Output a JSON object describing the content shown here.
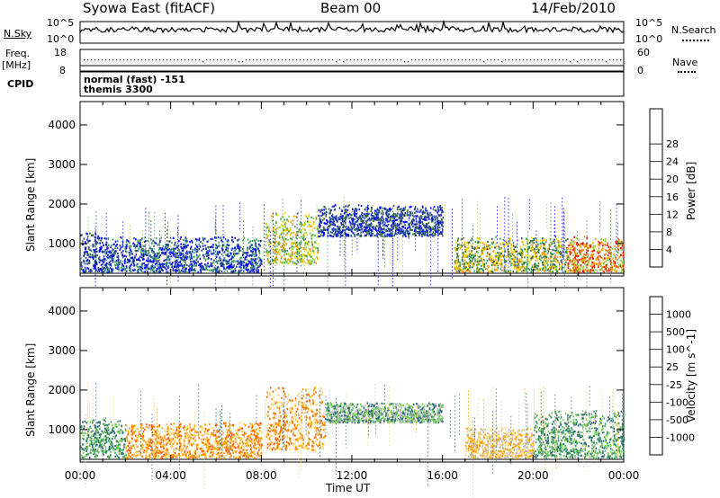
{
  "header": {
    "station": "Syowa East (fitACF)",
    "beam": "Beam 00",
    "date": "14/Feb/2010"
  },
  "panels": {
    "nsky": {
      "label": "N.Sky",
      "left_ticks": [
        "10^5",
        "10^0"
      ],
      "right_label": "N.Search",
      "right_ticks": [
        "10^5",
        "10^0"
      ]
    },
    "freq": {
      "label_line1": "Freq.",
      "label_line2": "[MHz]",
      "left_ticks": [
        "18",
        "8"
      ],
      "right_label": "Nave",
      "right_ticks": [
        "60",
        "0"
      ]
    },
    "cpid": {
      "label": "CPID",
      "line1": "normal (fast) -151",
      "line2": "themis 3300"
    }
  },
  "chart_data": [
    {
      "type": "heatmap",
      "title": "",
      "xlabel": "",
      "ylabel": "Slant Range [km]",
      "x_range_hours_ut": [
        0,
        24
      ],
      "ylim": [
        180,
        4590
      ],
      "yticks": [
        "1000",
        "2000",
        "3000",
        "4000"
      ],
      "colorbar": {
        "label": "Power [dB]",
        "ticks": [
          "4",
          "8",
          "12",
          "16",
          "20",
          "24",
          "28"
        ],
        "range": [
          0,
          30
        ],
        "colors": [
          "#0000ff",
          "#1f3f9f",
          "#2e6a3a",
          "#3f9f5f",
          "#8fd33f",
          "#f5e000",
          "#ffa000",
          "#ff6000",
          "#ff0000"
        ]
      },
      "features": [
        {
          "start_h": 0.0,
          "end_h": 1.0,
          "range_km": [
            300,
            1300
          ],
          "dominant_value": "4-12 dB"
        },
        {
          "start_h": 1.0,
          "end_h": 8.0,
          "range_km": [
            300,
            1200
          ],
          "dominant_value": "4-12 dB"
        },
        {
          "start_h": 8.2,
          "end_h": 10.5,
          "range_km": [
            500,
            1800
          ],
          "dominant_value": "12-24 dB"
        },
        {
          "start_h": 10.5,
          "end_h": 16.0,
          "range_km": [
            1200,
            2000
          ],
          "dominant_value": "4-12 dB"
        },
        {
          "start_h": 16.5,
          "end_h": 21.5,
          "range_km": [
            300,
            1200
          ],
          "dominant_value": "12-24 dB"
        },
        {
          "start_h": 21.5,
          "end_h": 24.0,
          "range_km": [
            300,
            1200
          ],
          "dominant_value": "8-28 dB"
        }
      ]
    },
    {
      "type": "heatmap",
      "title": "",
      "xlabel": "Time UT",
      "ylabel": "Slant Range [km]",
      "x_range_hours_ut": [
        0,
        24
      ],
      "xticks": [
        "00:00",
        "04:00",
        "08:00",
        "12:00",
        "16:00",
        "20:00",
        "00:00"
      ],
      "ylim": [
        180,
        4590
      ],
      "yticks": [
        "1000",
        "2000",
        "3000",
        "4000"
      ],
      "colorbar": {
        "label": "Velocity [m s^-1]",
        "ticks": [
          "1000",
          "500",
          "100",
          "25",
          "-25",
          "-100",
          "-500",
          "-1000"
        ],
        "colors": [
          "#2040c0",
          "#2a6a7a",
          "#3f9f5f",
          "#6fd04f",
          "#bdbdbd",
          "#ffd05f",
          "#ffa000",
          "#ff6000",
          "#ff0000"
        ]
      },
      "features": [
        {
          "start_h": 0.0,
          "end_h": 2.0,
          "range_km": [
            300,
            1300
          ],
          "dominant_value": "100-500 m/s"
        },
        {
          "start_h": 2.0,
          "end_h": 8.0,
          "range_km": [
            300,
            1200
          ],
          "dominant_value": "-100 to -500 m/s"
        },
        {
          "start_h": 8.2,
          "end_h": 10.8,
          "range_km": [
            500,
            2100
          ],
          "dominant_value": "-100 to -500 m/s"
        },
        {
          "start_h": 10.8,
          "end_h": 16.0,
          "range_km": [
            1200,
            1700
          ],
          "dominant_value": "-25 to 25 m/s"
        },
        {
          "start_h": 17.0,
          "end_h": 20.0,
          "range_km": [
            300,
            1100
          ],
          "dominant_value": "-25 to -100 m/s"
        },
        {
          "start_h": 20.0,
          "end_h": 24.0,
          "range_km": [
            300,
            1500
          ],
          "dominant_value": "100-500 m/s"
        }
      ]
    }
  ]
}
